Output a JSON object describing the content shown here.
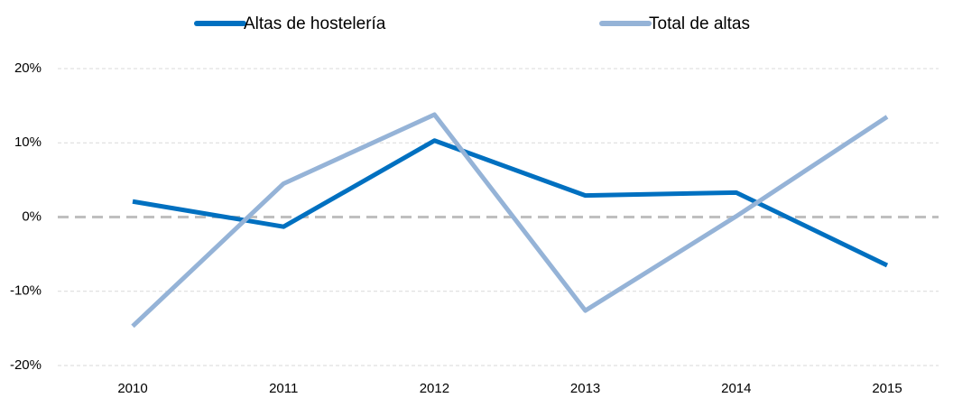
{
  "chart_data": {
    "type": "line",
    "categories": [
      "2010",
      "2011",
      "2012",
      "2013",
      "2014",
      "2015"
    ],
    "series": [
      {
        "name": "Altas de hostelería",
        "color": "#0070c0",
        "values": [
          2.1,
          -1.3,
          10.3,
          2.9,
          3.3,
          -6.5
        ]
      },
      {
        "name": "Total de altas",
        "color": "#95b3d7",
        "values": [
          -14.7,
          4.5,
          13.8,
          -12.6,
          0.1,
          13.5
        ]
      }
    ],
    "ylim": [
      -20,
      20
    ],
    "yticks": [
      {
        "value": -20,
        "label": "-20%"
      },
      {
        "value": -10,
        "label": "-10%"
      },
      {
        "value": 0,
        "label": "0%"
      },
      {
        "value": 10,
        "label": "10%"
      },
      {
        "value": 20,
        "label": "20%"
      }
    ],
    "grid": true,
    "legend": "top"
  }
}
